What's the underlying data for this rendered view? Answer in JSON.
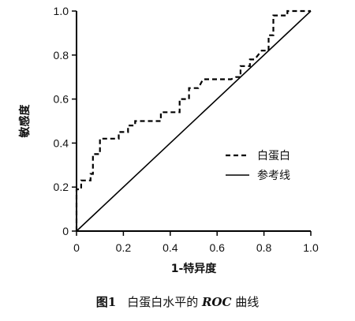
{
  "chart_data": {
    "type": "line",
    "xlabel": "1-特异度",
    "ylabel": "敏感度",
    "xlim": [
      0,
      1.0
    ],
    "ylim": [
      0,
      1.0
    ],
    "x_ticks": [
      "0",
      "0.2",
      "0.4",
      "0.6",
      "0.8",
      "1.0"
    ],
    "y_ticks": [
      "0",
      "0.2",
      "0.4",
      "0.6",
      "0.8",
      "1.0"
    ],
    "grid": false,
    "legend_position": "right",
    "series": [
      {
        "name": "白蛋白",
        "style": "dashed",
        "points": [
          [
            0,
            0
          ],
          [
            0,
            0.19
          ],
          [
            0.02,
            0.19
          ],
          [
            0.02,
            0.23
          ],
          [
            0.06,
            0.23
          ],
          [
            0.06,
            0.26
          ],
          [
            0.07,
            0.26
          ],
          [
            0.07,
            0.35
          ],
          [
            0.1,
            0.35
          ],
          [
            0.1,
            0.42
          ],
          [
            0.18,
            0.42
          ],
          [
            0.18,
            0.45
          ],
          [
            0.22,
            0.45
          ],
          [
            0.22,
            0.48
          ],
          [
            0.25,
            0.48
          ],
          [
            0.25,
            0.5
          ],
          [
            0.36,
            0.5
          ],
          [
            0.36,
            0.54
          ],
          [
            0.44,
            0.54
          ],
          [
            0.44,
            0.6
          ],
          [
            0.48,
            0.6
          ],
          [
            0.48,
            0.65
          ],
          [
            0.52,
            0.65
          ],
          [
            0.54,
            0.69
          ],
          [
            0.66,
            0.69
          ],
          [
            0.68,
            0.7
          ],
          [
            0.7,
            0.7
          ],
          [
            0.7,
            0.75
          ],
          [
            0.74,
            0.75
          ],
          [
            0.74,
            0.78
          ],
          [
            0.76,
            0.78
          ],
          [
            0.79,
            0.82
          ],
          [
            0.82,
            0.82
          ],
          [
            0.82,
            0.89
          ],
          [
            0.84,
            0.89
          ],
          [
            0.84,
            0.98
          ],
          [
            0.9,
            0.98
          ],
          [
            0.9,
            1.0
          ],
          [
            1.0,
            1.0
          ]
        ]
      },
      {
        "name": "参考线",
        "style": "solid",
        "points": [
          [
            0,
            0
          ],
          [
            1.0,
            1.0
          ]
        ]
      }
    ]
  },
  "caption": {
    "fig_num": "图1",
    "text_before": "白蛋白水平的 ",
    "roc": "ROC",
    "text_after": " 曲线"
  }
}
